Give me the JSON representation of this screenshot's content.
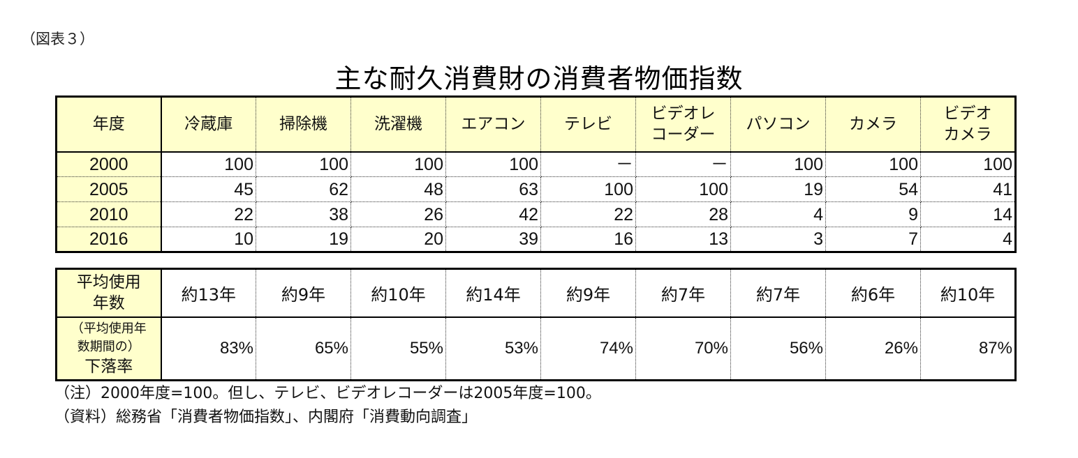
{
  "figure_label": "（図表３）",
  "title": "主な耐久消費財の消費者物価指数",
  "index_table": {
    "header_first": "年度",
    "columns": [
      {
        "line1": "冷蔵庫",
        "line2": ""
      },
      {
        "line1": "掃除機",
        "line2": ""
      },
      {
        "line1": "洗濯機",
        "line2": ""
      },
      {
        "line1": "エアコン",
        "line2": ""
      },
      {
        "line1": "テレビ",
        "line2": ""
      },
      {
        "line1": "ビデオレ",
        "line2": "コーダー"
      },
      {
        "line1": "パソコン",
        "line2": ""
      },
      {
        "line1": "カメラ",
        "line2": ""
      },
      {
        "line1": "ビデオ",
        "line2": "カメラ"
      }
    ],
    "rows": [
      {
        "year": "2000",
        "values": [
          "100",
          "100",
          "100",
          "100",
          "－",
          "－",
          "100",
          "100",
          "100"
        ]
      },
      {
        "year": "2005",
        "values": [
          "45",
          "62",
          "48",
          "63",
          "100",
          "100",
          "19",
          "54",
          "41"
        ]
      },
      {
        "year": "2010",
        "values": [
          "22",
          "38",
          "26",
          "42",
          "22",
          "28",
          "4",
          "9",
          "14"
        ]
      },
      {
        "year": "2016",
        "values": [
          "10",
          "19",
          "20",
          "39",
          "16",
          "13",
          "3",
          "7",
          "4"
        ]
      }
    ]
  },
  "usage_table": {
    "row1_label_line1": "平均使用",
    "row1_label_line2": "年数",
    "years": [
      "約13年",
      "約9年",
      "約10年",
      "約14年",
      "約9年",
      "約7年",
      "約7年",
      "約6年",
      "約10年"
    ],
    "row2_label_line1": "（平均使用年",
    "row2_label_line2": "数期間の）",
    "row2_label_line3": "下落率",
    "decline": [
      "83%",
      "65%",
      "55%",
      "53%",
      "74%",
      "70%",
      "56%",
      "26%",
      "87%"
    ]
  },
  "notes": {
    "note": "（注）2000年度=100。但し、テレビ、ビデオレコーダーは2005年度=100。",
    "source": "（資料）総務省「消費者物価指数」、内閣府「消費動向調査」"
  },
  "colors": {
    "header_bg": "#FFFFCC",
    "border": "#000000"
  }
}
